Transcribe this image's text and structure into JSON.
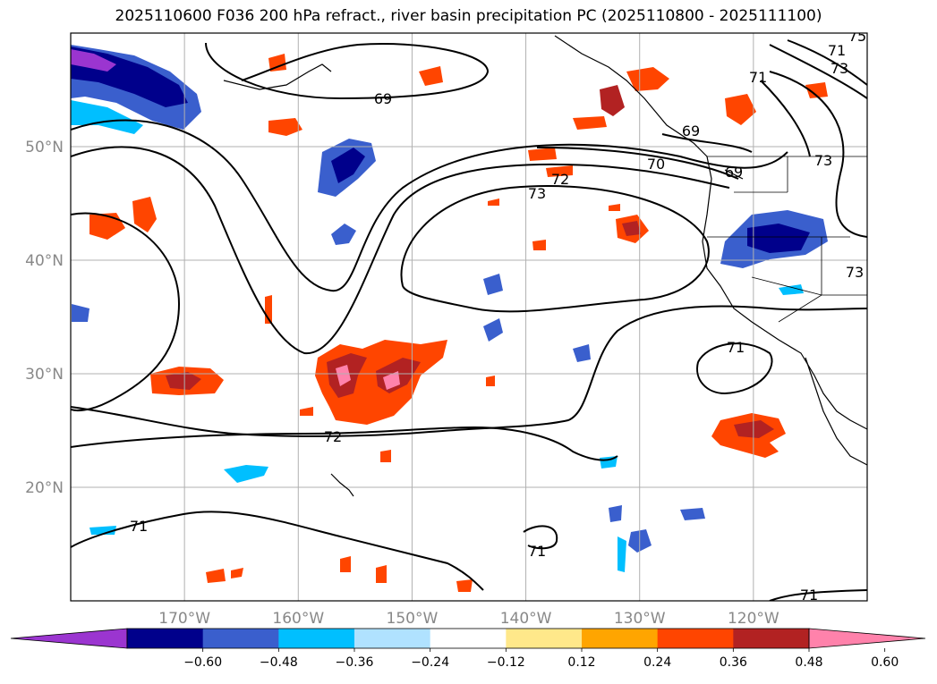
{
  "title": "2025110600 F036 200 hPa refract., river basin precipitation PC (2025110800 - 2025111100)",
  "map": {
    "lon_range": [
      -180,
      -110
    ],
    "lat_range": [
      10,
      60
    ],
    "lat_ticks": [
      {
        "value": 50,
        "label": "50°N"
      },
      {
        "value": 40,
        "label": "40°N"
      },
      {
        "value": 30,
        "label": "30°N"
      },
      {
        "value": 20,
        "label": "20°N"
      }
    ],
    "lon_ticks": [
      {
        "value": -170,
        "label": "170°W"
      },
      {
        "value": -160,
        "label": "160°W"
      },
      {
        "value": -150,
        "label": "150°W"
      },
      {
        "value": -140,
        "label": "140°W"
      },
      {
        "value": -130,
        "label": "130°W"
      },
      {
        "value": -120,
        "label": "120°W"
      }
    ],
    "grid": true,
    "contour_labels": [
      "69",
      "69",
      "69",
      "70",
      "71",
      "71",
      "71",
      "71",
      "71",
      "71",
      "72",
      "72",
      "73",
      "73",
      "73",
      "73",
      "75"
    ]
  },
  "colorbar": {
    "ticks": [
      "−0.60",
      "−0.48",
      "−0.36",
      "−0.24",
      "−0.12",
      "0.12",
      "0.24",
      "0.36",
      "0.48",
      "0.60"
    ],
    "colors": [
      "#9b35d0",
      "#00008b",
      "#3a5fcd",
      "#00bfff",
      "#b0e2ff",
      "#ffffff",
      "#ffe88a",
      "#ffa500",
      "#ff4500",
      "#b22222",
      "#ff82ab"
    ],
    "extend": "both"
  },
  "chart_data": {
    "type": "heatmap",
    "title": "2025110600 F036 200 hPa refract., river basin precipitation PC (2025110800 - 2025111100)",
    "x_range": [
      -180,
      -110
    ],
    "y_range": [
      10,
      60
    ],
    "levels": [
      -0.6,
      -0.48,
      -0.36,
      -0.24,
      -0.12,
      0.12,
      0.24,
      0.36,
      0.48,
      0.6
    ],
    "contour_levels": [
      69,
      70,
      71,
      72,
      73,
      75
    ]
  }
}
